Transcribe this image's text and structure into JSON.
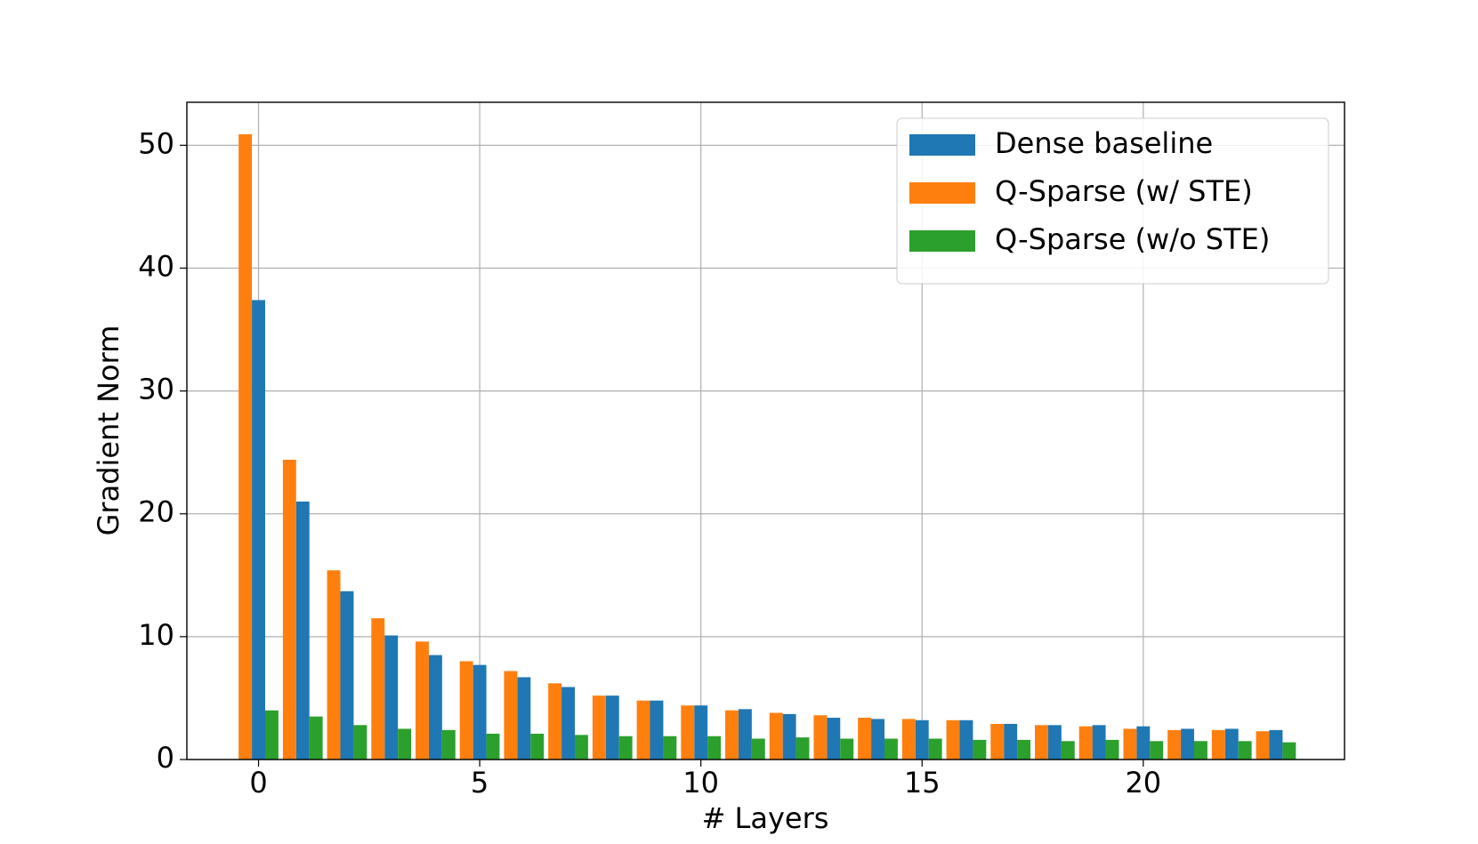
{
  "chart_data": {
    "type": "bar",
    "x_label": "# Layers",
    "y_label": "Gradient Norm",
    "x": [
      0,
      1,
      2,
      3,
      4,
      5,
      6,
      7,
      8,
      9,
      10,
      11,
      12,
      13,
      14,
      15,
      16,
      17,
      18,
      19,
      20,
      21,
      22,
      23
    ],
    "series": [
      {
        "name": "Dense baseline",
        "color": "#1f77b4",
        "values": [
          37.4,
          21.0,
          13.7,
          10.1,
          8.5,
          7.7,
          6.7,
          5.9,
          5.2,
          4.8,
          4.4,
          4.1,
          3.7,
          3.4,
          3.3,
          3.2,
          3.2,
          2.9,
          2.8,
          2.8,
          2.7,
          2.5,
          2.5,
          2.4
        ]
      },
      {
        "name": "Q-Sparse (w/ STE)",
        "color": "#ff7f0e",
        "values": [
          50.9,
          24.4,
          15.4,
          11.5,
          9.6,
          8.0,
          7.2,
          6.2,
          5.2,
          4.8,
          4.4,
          4.0,
          3.8,
          3.6,
          3.4,
          3.3,
          3.2,
          2.9,
          2.8,
          2.7,
          2.5,
          2.4,
          2.4,
          2.3
        ]
      },
      {
        "name": "Q-Sparse (w/o STE)",
        "color": "#2ca02c",
        "values": [
          4.0,
          3.5,
          2.8,
          2.5,
          2.4,
          2.1,
          2.1,
          2.0,
          1.9,
          1.9,
          1.9,
          1.7,
          1.8,
          1.7,
          1.7,
          1.7,
          1.6,
          1.6,
          1.5,
          1.6,
          1.5,
          1.5,
          1.5,
          1.4
        ]
      }
    ],
    "xlim": [
      -1.62,
      24.55
    ],
    "xticks": [
      0,
      5,
      10,
      15,
      20
    ],
    "ylim": [
      0,
      53.5
    ],
    "yticks": [
      0,
      10,
      20,
      30,
      40,
      50
    ],
    "grid": true,
    "legend": "upper right"
  }
}
